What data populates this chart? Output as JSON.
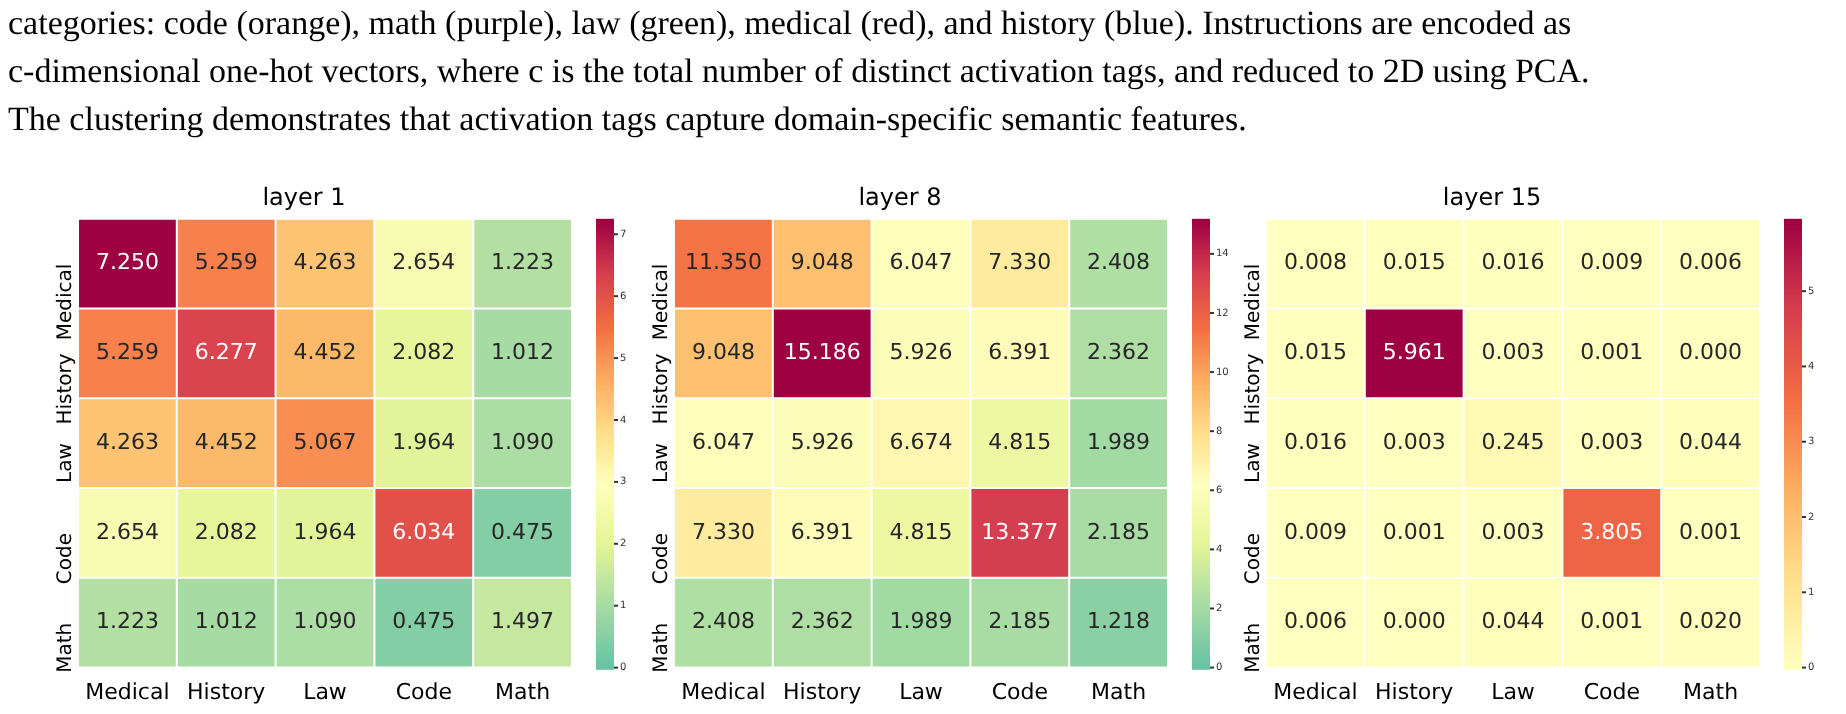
{
  "chart_data": [
    {
      "type": "heatmap",
      "title": "layer 1",
      "annotations": [
        "categories: code (orange), math (purple), law (green), medical (red), and history (blue). Instructions are encoded as",
        "c-dimensional one-hot vectors, where c is the total number of distinct activation tags, and reduced to 2D using PCA.",
        "The clustering demonstrates that activation tags capture domain-specific semantic features."
      ],
      "categories": [
        "Medical",
        "History",
        "Law",
        "Code",
        "Math"
      ],
      "y_categories": [
        "Medical",
        "History",
        "Law",
        "Code",
        "Math"
      ],
      "cells": [
        [
          7.25,
          5.259,
          4.263,
          2.654,
          1.223
        ],
        [
          5.259,
          6.277,
          4.452,
          2.082,
          1.012
        ],
        [
          4.263,
          4.452,
          5.067,
          1.964,
          1.09
        ],
        [
          2.654,
          2.082,
          1.964,
          6.034,
          0.475
        ],
        [
          1.223,
          1.012,
          1.09,
          0.475,
          1.497
        ]
      ],
      "cell_labels": [
        [
          "7.250",
          "5.259",
          "4.263",
          "2.654",
          "1.223"
        ],
        [
          "5.259",
          "6.277",
          "4.452",
          "2.082",
          "1.012"
        ],
        [
          "4.263",
          "4.452",
          "5.067",
          "1.964",
          "1.090"
        ],
        [
          "2.654",
          "2.082",
          "1.964",
          "6.034",
          "0.475"
        ],
        [
          "1.223",
          "1.012",
          "1.090",
          "0.475",
          "1.497"
        ]
      ],
      "clim": [
        0,
        7.25
      ],
      "cticks": [
        0,
        1,
        2,
        3,
        4,
        5,
        6,
        7
      ]
    },
    {
      "type": "heatmap",
      "title": "layer 8",
      "categories": [
        "Medical",
        "History",
        "Law",
        "Code",
        "Math"
      ],
      "y_categories": [
        "Medical",
        "History",
        "Law",
        "Code",
        "Math"
      ],
      "cells": [
        [
          11.35,
          9.048,
          6.047,
          7.33,
          2.408
        ],
        [
          9.048,
          15.186,
          5.926,
          6.391,
          2.362
        ],
        [
          6.047,
          5.926,
          6.674,
          4.815,
          1.989
        ],
        [
          7.33,
          6.391,
          4.815,
          13.377,
          2.185
        ],
        [
          2.408,
          2.362,
          1.989,
          2.185,
          1.218
        ]
      ],
      "cell_labels": [
        [
          "11.350",
          "9.048",
          "6.047",
          "7.330",
          "2.408"
        ],
        [
          "9.048",
          "15.186",
          "5.926",
          "6.391",
          "2.362"
        ],
        [
          "6.047",
          "5.926",
          "6.674",
          "4.815",
          "1.989"
        ],
        [
          "7.330",
          "6.391",
          "4.815",
          "13.377",
          "2.185"
        ],
        [
          "2.408",
          "2.362",
          "1.989",
          "2.185",
          "1.218"
        ]
      ],
      "clim": [
        0,
        15.186
      ],
      "cticks": [
        0,
        2,
        4,
        6,
        8,
        10,
        12,
        14
      ]
    },
    {
      "type": "heatmap",
      "title": "layer 15",
      "categories": [
        "Medical",
        "History",
        "Law",
        "Code",
        "Math"
      ],
      "y_categories": [
        "Medical",
        "History",
        "Law",
        "Code",
        "Math"
      ],
      "cells": [
        [
          0.008,
          0.015,
          0.016,
          0.009,
          0.006
        ],
        [
          0.015,
          5.961,
          0.003,
          0.001,
          0.0
        ],
        [
          0.016,
          0.003,
          0.245,
          0.003,
          0.044
        ],
        [
          0.009,
          0.001,
          0.003,
          3.805,
          0.001
        ],
        [
          0.006,
          0.0,
          0.044,
          0.001,
          0.02
        ]
      ],
      "cell_labels": [
        [
          "0.008",
          "0.015",
          "0.016",
          "0.009",
          "0.006"
        ],
        [
          "0.015",
          "5.961",
          "0.003",
          "0.001",
          "0.000"
        ],
        [
          "0.016",
          "0.003",
          "0.245",
          "0.003",
          "0.044"
        ],
        [
          "0.009",
          "0.001",
          "0.003",
          "3.805",
          "0.001"
        ],
        [
          "0.006",
          "0.000",
          "0.044",
          "0.001",
          "0.020"
        ]
      ],
      "clim": [
        0,
        5.961
      ],
      "cticks": [
        0,
        1,
        2,
        3,
        4,
        5
      ]
    }
  ]
}
